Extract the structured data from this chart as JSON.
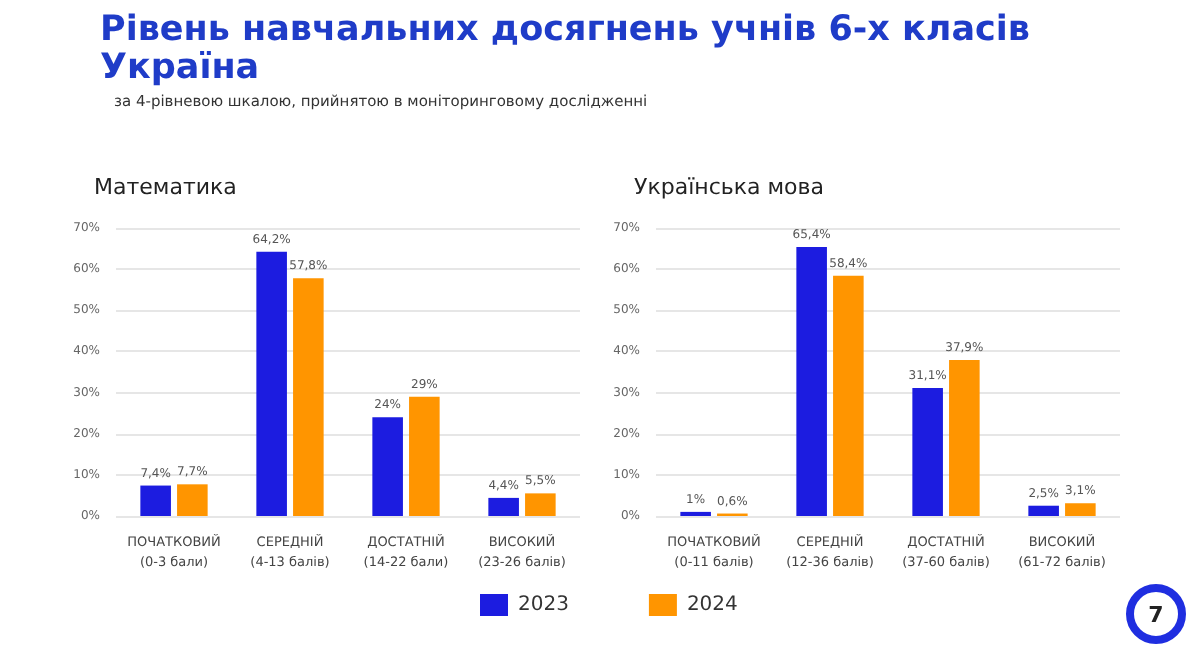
{
  "chart_data": [
    {
      "type": "bar",
      "title": "Математика",
      "annotations": [
        "Рівень навчальних досягнень учнів 6-х класів Україна",
        "за 4-рівневою шкалою, прийнятою в моніторинговому дослідженні",
        "7"
      ],
      "categories": [
        "ПОЧАТКОВИЙ\n(0-3 бали)",
        "СЕРЕДНІЙ\n(4-13 балів)",
        "ДОСТАТНІЙ\n(14-22 бали)",
        "ВИСОКИЙ\n(23-26 балів)"
      ],
      "series": [
        {
          "name": "2023",
          "color": "#1c1ce0",
          "values": [
            7.4,
            64.2,
            24,
            4.4
          ],
          "value_labels": [
            "7,4%",
            "64,2%",
            "24%",
            "4,4%"
          ]
        },
        {
          "name": "2024",
          "color": "#ff9500",
          "values": [
            7.7,
            57.8,
            29,
            5.5
          ],
          "value_labels": [
            "7,7%",
            "57,8%",
            "29%",
            "5,5%"
          ]
        }
      ],
      "ylim": [
        0,
        70
      ],
      "yticks": [
        {
          "value": 0,
          "label": "0%"
        },
        {
          "value": 10,
          "label": "10%"
        },
        {
          "value": 20,
          "label": "20%"
        },
        {
          "value": 30,
          "label": "30%"
        },
        {
          "value": 40,
          "label": "40%"
        },
        {
          "value": 50,
          "label": "50%"
        },
        {
          "value": 60,
          "label": "60%"
        },
        {
          "value": 70,
          "label": "70%"
        }
      ],
      "grid": "y",
      "legend": "bottom"
    },
    {
      "type": "bar",
      "title": "Українська мова",
      "categories": [
        "ПОЧАТКОВИЙ\n(0-11 балів)",
        "СЕРЕДНІЙ\n(12-36 балів)",
        "ДОСТАТНІЙ\n(37-60 балів)",
        "ВИСОКИЙ\n(61-72 балів)"
      ],
      "series": [
        {
          "name": "2023",
          "color": "#1c1ce0",
          "values": [
            1,
            65.4,
            31.1,
            2.5
          ],
          "value_labels": [
            "1%",
            "65,4%",
            "31,1%",
            "2,5%"
          ]
        },
        {
          "name": "2024",
          "color": "#ff9500",
          "values": [
            0.6,
            58.4,
            37.9,
            3.1
          ],
          "value_labels": [
            "0,6%",
            "58,4%",
            "37,9%",
            "3,1%"
          ]
        }
      ],
      "ylim": [
        0,
        70
      ],
      "yticks": [
        {
          "value": 0,
          "label": "0%"
        },
        {
          "value": 10,
          "label": "10%"
        },
        {
          "value": 20,
          "label": "20%"
        },
        {
          "value": 30,
          "label": "30%"
        },
        {
          "value": 40,
          "label": "40%"
        },
        {
          "value": 50,
          "label": "50%"
        },
        {
          "value": 60,
          "label": "60%"
        },
        {
          "value": 70,
          "label": "70%"
        }
      ],
      "grid": "y"
    }
  ]
}
